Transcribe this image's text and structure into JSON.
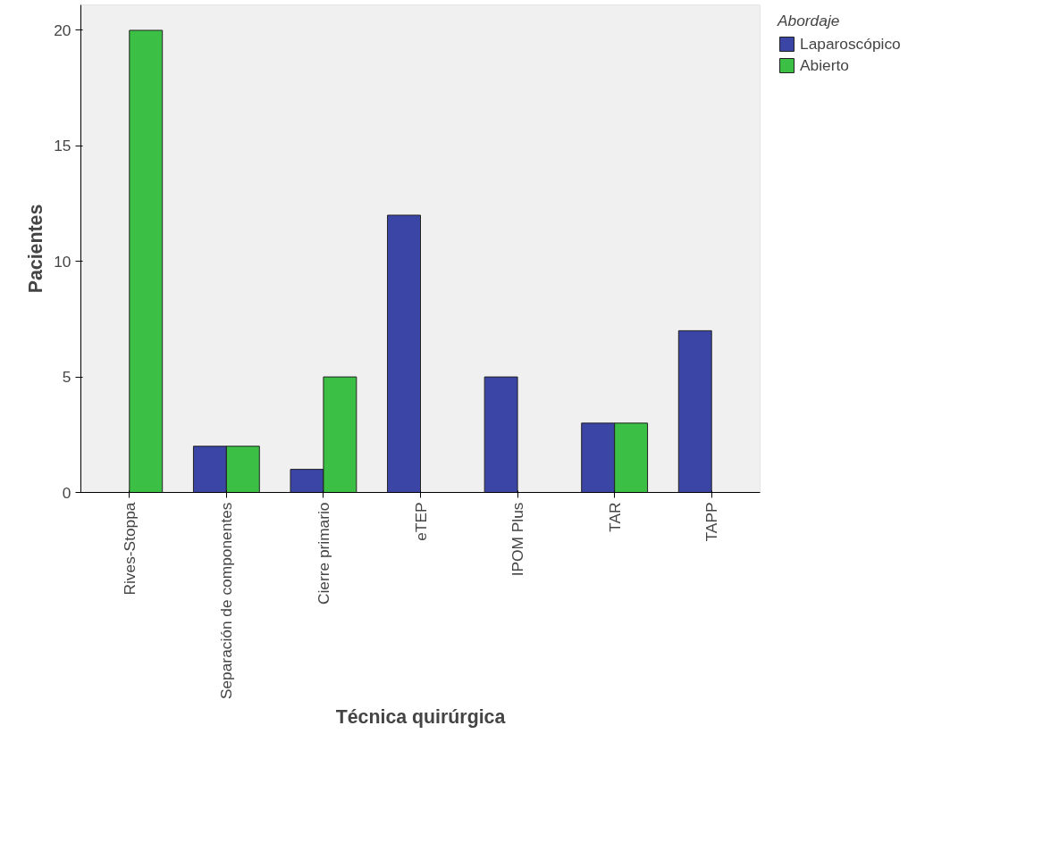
{
  "chart_data": {
    "type": "bar",
    "xlabel": "Técnica quirúrgica",
    "ylabel": "Pacientes",
    "legend_title": "Abordaje",
    "categories": [
      "Rives-Stoppa",
      "Separación de componentes",
      "Cierre primario",
      "eTEP",
      "IPOM Plus",
      "TAR",
      "TAPP"
    ],
    "series": [
      {
        "name": "Laparoscópico",
        "color": "#3b45a6",
        "values": [
          null,
          2,
          1,
          12,
          5,
          3,
          7
        ]
      },
      {
        "name": "Abierto",
        "color": "#3cbf45",
        "values": [
          20,
          2,
          5,
          null,
          null,
          3,
          null
        ]
      }
    ],
    "ylim": [
      0,
      21.1
    ],
    "yticks": [
      0,
      5,
      10,
      15,
      20
    ],
    "grid": false,
    "legend": "top right"
  }
}
